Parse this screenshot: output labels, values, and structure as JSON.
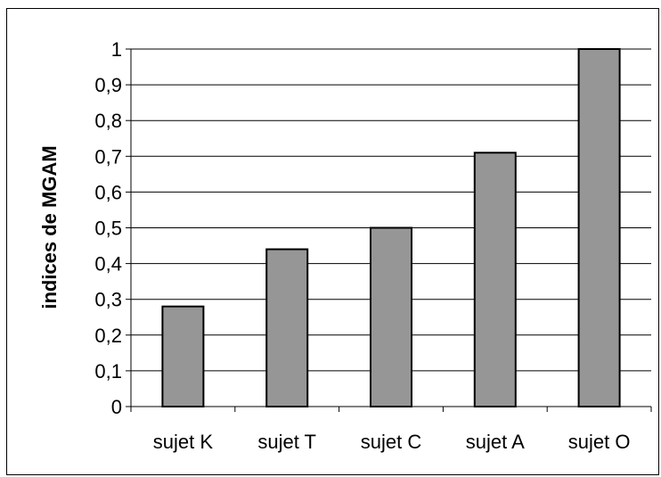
{
  "chart_data": {
    "type": "bar",
    "title": "",
    "xlabel": "",
    "ylabel": "indices de MGAM",
    "categories": [
      "sujet K",
      "sujet T",
      "sujet C",
      "sujet A",
      "sujet O"
    ],
    "values": [
      0.28,
      0.44,
      0.5,
      0.71,
      1.0
    ],
    "ylim": [
      0,
      1
    ],
    "yticks": [
      "0",
      "0,1",
      "0,2",
      "0,3",
      "0,4",
      "0,5",
      "0,6",
      "0,7",
      "0,8",
      "0,9",
      "1"
    ],
    "grid": true,
    "legend": "none",
    "colors": {
      "bar_fill": "#969696",
      "bar_stroke": "#000000",
      "gridline": "#000000",
      "axis": "#000000",
      "background": "#ffffff"
    }
  }
}
